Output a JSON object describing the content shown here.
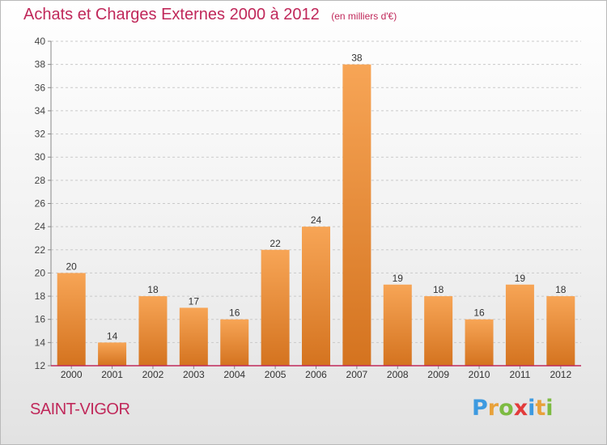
{
  "header": {
    "title": "Achats et Charges Externes 2000 à 2012",
    "subtitle": "(en milliers d'€)"
  },
  "footer": {
    "place_name": "SAINT-VIGOR",
    "logo_text": "Proxiti",
    "logo_letters": [
      {
        "char": "P",
        "color": "#3d9ae0"
      },
      {
        "char": "r",
        "color": "#e8a13a"
      },
      {
        "char": "o",
        "color": "#7dbb42"
      },
      {
        "char": "x",
        "color": "#e23b3b"
      },
      {
        "char": "i",
        "color": "#3d9ae0"
      },
      {
        "char": "t",
        "color": "#e8a13a"
      },
      {
        "char": "i",
        "color": "#7dbb42"
      }
    ]
  },
  "colors": {
    "bar_top": "#f7a556",
    "bar_bottom": "#d4731f",
    "title": "#c0285a",
    "axis": "#c0285a",
    "grid": "#c9c9c9"
  },
  "chart_data": {
    "type": "bar",
    "title": "Achats et Charges Externes 2000 à 2012",
    "subtitle": "(en milliers d'€)",
    "xlabel": "",
    "ylabel": "",
    "categories": [
      "2000",
      "2001",
      "2002",
      "2003",
      "2004",
      "2005",
      "2006",
      "2007",
      "2008",
      "2009",
      "2010",
      "2011",
      "2012"
    ],
    "values": [
      20,
      14,
      18,
      17,
      16,
      22,
      24,
      38,
      19,
      18,
      16,
      19,
      18
    ],
    "ylim": [
      12,
      40
    ],
    "yticks": [
      12,
      14,
      16,
      18,
      20,
      22,
      24,
      26,
      28,
      30,
      32,
      34,
      36,
      38,
      40
    ],
    "grid": "horizontal dashed",
    "data_labels": true
  }
}
